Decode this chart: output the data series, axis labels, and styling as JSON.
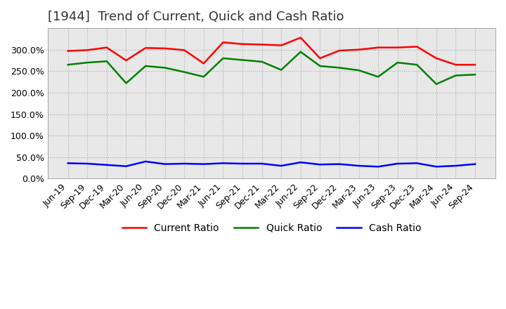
{
  "title": "[1944]  Trend of Current, Quick and Cash Ratio",
  "x_labels": [
    "Jun-19",
    "Sep-19",
    "Dec-19",
    "Mar-20",
    "Jun-20",
    "Sep-20",
    "Dec-20",
    "Mar-21",
    "Jun-21",
    "Sep-21",
    "Dec-21",
    "Mar-22",
    "Jun-22",
    "Sep-22",
    "Dec-22",
    "Mar-23",
    "Jun-23",
    "Sep-23",
    "Dec-23",
    "Mar-24",
    "Jun-24",
    "Sep-24"
  ],
  "current_ratio": [
    297,
    299,
    305,
    275,
    304,
    303,
    299,
    268,
    317,
    313,
    312,
    310,
    328,
    280,
    298,
    300,
    305,
    305,
    307,
    280,
    265,
    265
  ],
  "quick_ratio": [
    265,
    270,
    273,
    222,
    262,
    258,
    248,
    237,
    280,
    276,
    272,
    253,
    295,
    262,
    258,
    252,
    237,
    270,
    265,
    220,
    240,
    242
  ],
  "cash_ratio": [
    36,
    35,
    32,
    29,
    40,
    34,
    35,
    34,
    36,
    35,
    35,
    30,
    38,
    33,
    34,
    30,
    28,
    35,
    36,
    28,
    30,
    34
  ],
  "current_color": "#ff0000",
  "quick_color": "#008000",
  "cash_color": "#0000ff",
  "grid_color": "#aaaaaa",
  "plot_bg_color": "#e8e8e8",
  "background_color": "#ffffff",
  "ylim": [
    0,
    350
  ],
  "yticks": [
    0,
    50,
    100,
    150,
    200,
    250,
    300
  ],
  "title_fontsize": 13,
  "legend_fontsize": 10,
  "tick_fontsize": 9
}
